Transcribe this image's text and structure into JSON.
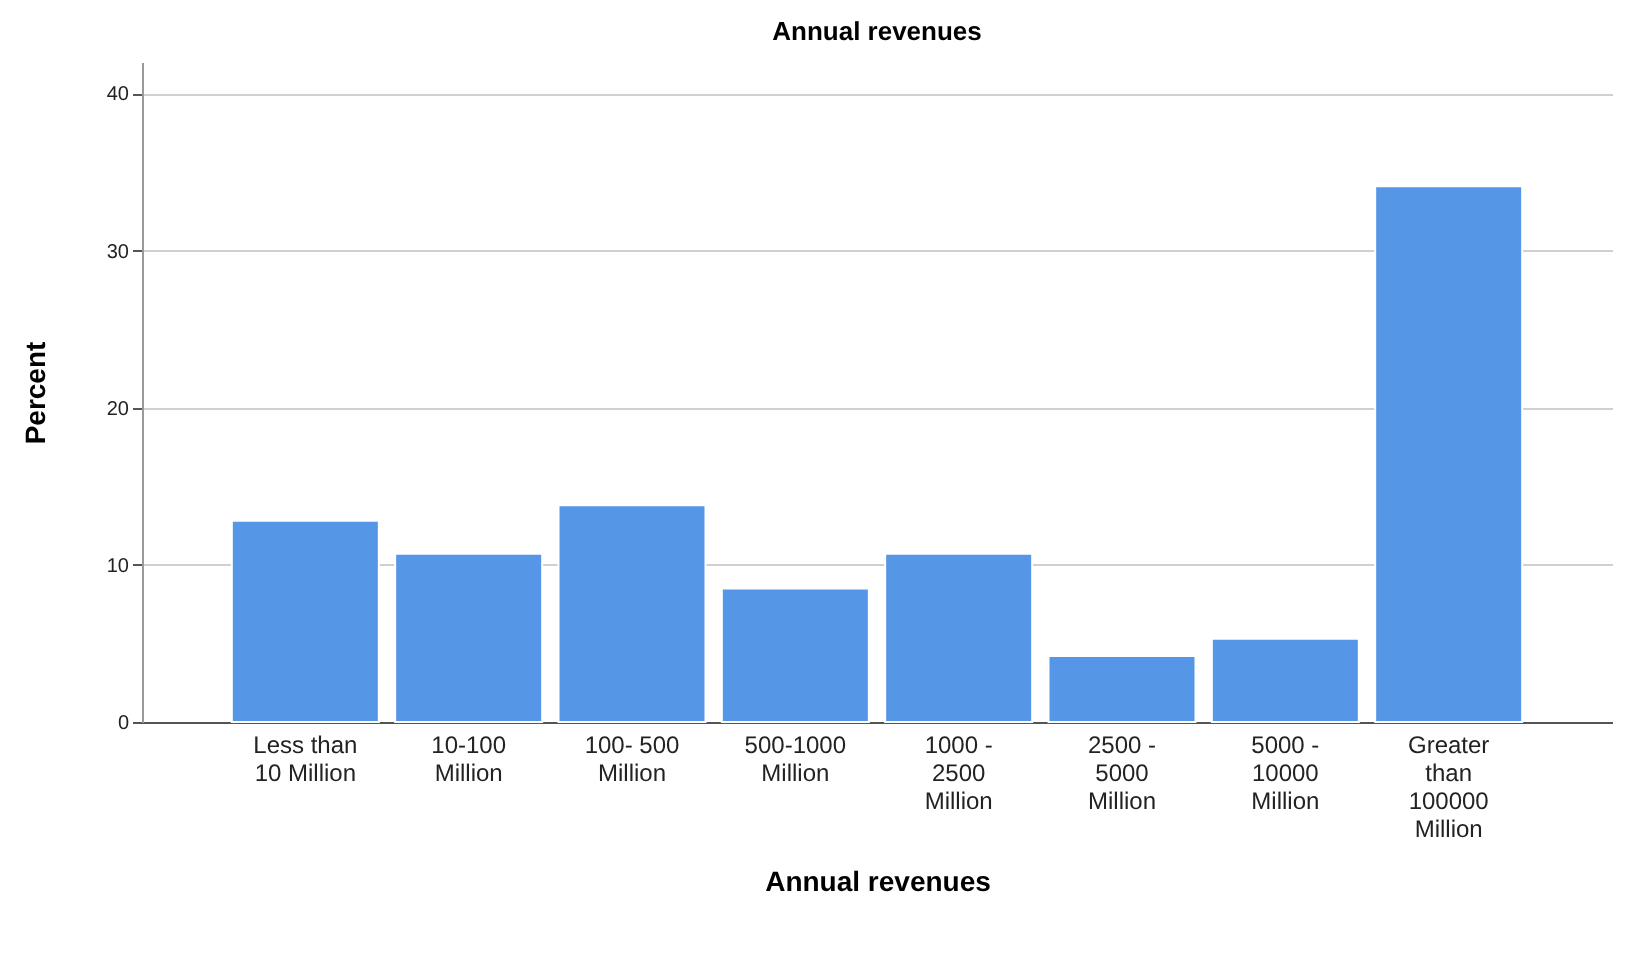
{
  "chart_data": {
    "type": "bar",
    "title": "Annual revenues",
    "xlabel": "Annual revenues",
    "ylabel": "Percent",
    "categories": [
      "Less than 10 Million",
      "10-100 Million",
      "100- 500 Million",
      "500-1000 Million",
      "1000 - 2500 Million",
      "2500 - 5000 Million",
      "5000 - 10000 Million",
      "Greater than 100000 Million"
    ],
    "values": [
      12.8,
      10.7,
      13.8,
      8.5,
      10.7,
      4.2,
      5.3,
      34.1
    ],
    "color": "#5596e6",
    "ylim": [
      0,
      42
    ],
    "yticks": [
      0,
      10,
      20,
      30,
      40
    ],
    "grid": "y"
  }
}
